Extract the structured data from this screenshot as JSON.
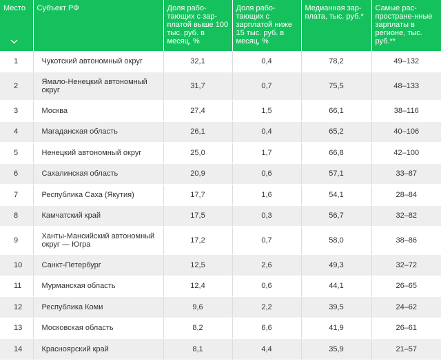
{
  "table": {
    "headers": [
      "Место",
      "Субъект РФ",
      "Доля рабо-тающих с зар-платой выше 100 тыс. руб. в месяц, %",
      "Доля рабо-тающих с зарплатой ниже 15 тыс. руб. в месяц, %",
      "Медианная зар-плата, тыс. руб.*",
      "Самые рас-простране-нные зарплаты в регионе, тыс. руб.**"
    ],
    "rows": [
      {
        "rank": "1",
        "region": "Чукотский автономный округ",
        "high": "32,1",
        "low": "0,4",
        "median": "78,2",
        "common": "49–132"
      },
      {
        "rank": "2",
        "region": "Ямало-Ненецкий автономный округ",
        "high": "31,7",
        "low": "0,7",
        "median": "75,5",
        "common": "48–133"
      },
      {
        "rank": "3",
        "region": "Москва",
        "high": "27,4",
        "low": "1,5",
        "median": "66,1",
        "common": "38–116"
      },
      {
        "rank": "4",
        "region": "Магаданская область",
        "high": "26,1",
        "low": "0,4",
        "median": "65,2",
        "common": "40–106"
      },
      {
        "rank": "5",
        "region": "Ненецкий автономный округ",
        "high": "25,0",
        "low": "1,7",
        "median": "66,8",
        "common": "42–100"
      },
      {
        "rank": "6",
        "region": "Сахалинская область",
        "high": "20,9",
        "low": "0,6",
        "median": "57,1",
        "common": "33–87"
      },
      {
        "rank": "7",
        "region": "Республика Саха (Якутия)",
        "high": "17,7",
        "low": "1,6",
        "median": "54,1",
        "common": "28–84"
      },
      {
        "rank": "8",
        "region": "Камчатский край",
        "high": "17,5",
        "low": "0,3",
        "median": "56,7",
        "common": "32–82"
      },
      {
        "rank": "9",
        "region": "Ханты-Мансийский автономный округ — Югра",
        "high": "17,2",
        "low": "0,7",
        "median": "58,0",
        "common": "38–86"
      },
      {
        "rank": "10",
        "region": "Санкт-Петербург",
        "high": "12,5",
        "low": "2,6",
        "median": "49,3",
        "common": "32–72"
      },
      {
        "rank": "11",
        "region": "Мурманская область",
        "high": "12,4",
        "low": "0,6",
        "median": "44,1",
        "common": "26–65"
      },
      {
        "rank": "12",
        "region": "Республика Коми",
        "high": "9,6",
        "low": "2,2",
        "median": "39,5",
        "common": "24–62"
      },
      {
        "rank": "13",
        "region": "Московская область",
        "high": "8,2",
        "low": "6,6",
        "median": "41,9",
        "common": "26–61"
      },
      {
        "rank": "14",
        "region": "Красноярский край",
        "high": "8,1",
        "low": "4,4",
        "median": "35,9",
        "common": "21–57"
      }
    ]
  },
  "icons": {
    "sort": "chevron-down-icon"
  },
  "colors": {
    "header_bg": "#15c15d",
    "row_alt_bg": "#eeeeee"
  }
}
